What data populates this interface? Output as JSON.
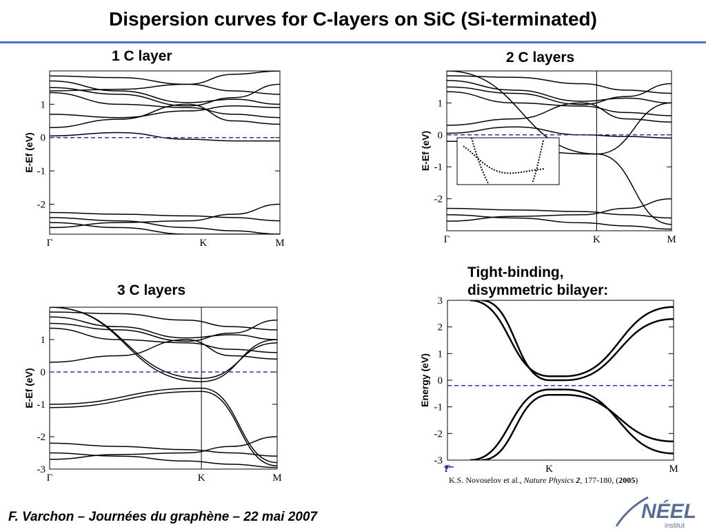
{
  "title": "Dispersion curves for C-layers on SiC (Si-terminated)",
  "footer": "F. Varchon – Journées du graphène – 22 mai 2007",
  "citation": {
    "authors": "K.S. Novoselov et al., ",
    "journal": "Nature Physics ",
    "volume": "2",
    "pages": ", 177-180, (",
    "year": "2005",
    "close": ")"
  },
  "logo": {
    "text": "NÉEL",
    "sub": "institut"
  },
  "colors": {
    "fermi_line": "#2233bb",
    "title_rule": "#4f6fc8",
    "bands": "#000000"
  },
  "chart_data": [
    {
      "type": "line",
      "panel_title": "1 C layer",
      "ylabel": "E-Ef (eV)",
      "y_ticks": [
        "1",
        "0",
        "-1",
        "-2"
      ],
      "y_tick_values": [
        1,
        0,
        -1,
        -2
      ],
      "ylim": [
        -2.9,
        2.0
      ],
      "x_labels": [
        "Γ",
        "K",
        "M"
      ],
      "x_label_positions": [
        0,
        0.667,
        1
      ],
      "k_line": false,
      "fermi_level": 0,
      "series": [
        {
          "x": [
            0,
            0.3,
            0.6,
            0.8,
            1
          ],
          "y": [
            1.85,
            1.8,
            1.6,
            1.4,
            1.3
          ]
        },
        {
          "x": [
            0,
            0.3,
            0.6,
            0.8,
            1
          ],
          "y": [
            1.7,
            1.4,
            1.05,
            1.15,
            1.0
          ]
        },
        {
          "x": [
            0,
            0.3,
            0.6,
            0.8,
            1
          ],
          "y": [
            1.5,
            1.3,
            0.95,
            1.2,
            1.6
          ]
        },
        {
          "x": [
            0,
            0.3,
            0.6,
            0.8,
            1
          ],
          "y": [
            1.4,
            1.45,
            1.6,
            1.9,
            2.0
          ]
        },
        {
          "x": [
            0,
            0.3,
            0.6,
            0.8,
            1
          ],
          "y": [
            1.35,
            1.0,
            0.9,
            0.7,
            0.6
          ]
        },
        {
          "x": [
            0,
            0.3,
            0.6,
            0.8,
            1
          ],
          "y": [
            0.7,
            0.6,
            0.8,
            0.95,
            0.9
          ]
        },
        {
          "x": [
            0,
            0.3,
            0.6,
            0.8,
            1
          ],
          "y": [
            0.3,
            0.55,
            1.0,
            0.5,
            0.4
          ]
        },
        {
          "x": [
            0,
            0.3,
            0.6,
            0.8,
            1
          ],
          "y": [
            0.05,
            0.15,
            -0.05,
            -0.1,
            -0.1
          ]
        },
        {
          "x": [
            0,
            0.3,
            0.6,
            0.8,
            1
          ],
          "y": [
            -2.25,
            -2.3,
            -2.35,
            -2.4,
            -2.5
          ]
        },
        {
          "x": [
            0,
            0.3,
            0.6,
            0.8,
            1
          ],
          "y": [
            -2.4,
            -2.5,
            -2.7,
            -2.8,
            -2.9
          ]
        },
        {
          "x": [
            0,
            0.3,
            0.6,
            0.8,
            1
          ],
          "y": [
            -2.55,
            -2.7,
            -2.9,
            -2.9,
            -2.9
          ]
        },
        {
          "x": [
            0,
            0.3,
            0.6,
            0.8,
            1
          ],
          "y": [
            -2.7,
            -2.55,
            -2.5,
            -2.3,
            -2.0
          ]
        }
      ]
    },
    {
      "type": "line",
      "panel_title": "2 C layers",
      "ylabel": "E-Ef (eV)",
      "y_ticks": [
        "1",
        "0",
        "-1",
        "-2"
      ],
      "y_tick_values": [
        1,
        0,
        -1,
        -2
      ],
      "ylim": [
        -3.0,
        2.0
      ],
      "x_labels": [
        "Γ",
        "K",
        "M"
      ],
      "x_label_positions": [
        0,
        0.667,
        1
      ],
      "k_line": true,
      "fermi_level": 0,
      "inset": true,
      "series": [
        {
          "x": [
            0,
            0.3,
            0.6,
            0.8,
            1
          ],
          "y": [
            1.85,
            1.8,
            1.6,
            1.4,
            1.3
          ]
        },
        {
          "x": [
            0,
            0.3,
            0.6,
            0.8,
            1
          ],
          "y": [
            1.7,
            1.4,
            1.05,
            1.15,
            1.0
          ]
        },
        {
          "x": [
            0,
            0.3,
            0.6,
            0.8,
            1
          ],
          "y": [
            1.5,
            1.3,
            0.95,
            1.2,
            1.6
          ]
        },
        {
          "x": [
            0,
            0.3,
            0.6,
            0.8,
            1
          ],
          "y": [
            1.35,
            1.0,
            0.9,
            0.7,
            0.6
          ]
        },
        {
          "x": [
            0,
            0.3,
            0.6,
            0.8,
            1
          ],
          "y": [
            0.3,
            0.5,
            1.0,
            0.5,
            0.4
          ]
        },
        {
          "x": [
            0,
            0.3,
            0.6,
            0.8,
            1
          ],
          "y": [
            0.05,
            0.25,
            0.0,
            -0.05,
            -0.1
          ]
        },
        {
          "x": [
            0,
            0.667,
            1
          ],
          "y": [
            2.0,
            -0.6,
            1.0
          ]
        },
        {
          "x": [
            0,
            0.667,
            1
          ],
          "y": [
            -0.2,
            -0.6,
            -2.8
          ]
        },
        {
          "x": [
            0,
            0.3,
            0.6,
            0.8,
            1
          ],
          "y": [
            -2.3,
            -2.35,
            -2.4,
            -2.5,
            -2.6
          ]
        },
        {
          "x": [
            0,
            0.3,
            0.6,
            0.8,
            1
          ],
          "y": [
            -2.5,
            -2.6,
            -2.75,
            -2.85,
            -2.95
          ]
        },
        {
          "x": [
            0,
            0.3,
            0.6,
            0.8,
            1
          ],
          "y": [
            -2.7,
            -2.55,
            -2.5,
            -2.3,
            -2.0
          ]
        }
      ]
    },
    {
      "type": "line",
      "panel_title": "3 C layers",
      "ylabel": "E-Ef (eV)",
      "y_ticks": [
        "1",
        "0",
        "-1",
        "-2",
        "-3"
      ],
      "y_tick_values": [
        1,
        0,
        -1,
        -2,
        -3
      ],
      "ylim": [
        -3.0,
        2.0
      ],
      "x_labels": [
        "Γ",
        "K",
        "M"
      ],
      "x_label_positions": [
        0,
        0.667,
        1
      ],
      "k_line": true,
      "fermi_level": 0,
      "series": [
        {
          "x": [
            0,
            0.3,
            0.6,
            0.8,
            1
          ],
          "y": [
            1.85,
            1.8,
            1.6,
            1.4,
            1.3
          ]
        },
        {
          "x": [
            0,
            0.3,
            0.6,
            0.8,
            1
          ],
          "y": [
            1.7,
            1.4,
            1.05,
            1.15,
            1.0
          ]
        },
        {
          "x": [
            0,
            0.3,
            0.6,
            0.8,
            1
          ],
          "y": [
            1.5,
            1.3,
            0.95,
            1.2,
            1.6
          ]
        },
        {
          "x": [
            0,
            0.3,
            0.6,
            0.8,
            1
          ],
          "y": [
            1.35,
            1.0,
            0.9,
            0.7,
            0.6
          ]
        },
        {
          "x": [
            0,
            0.3,
            0.6,
            0.8,
            1
          ],
          "y": [
            0.3,
            0.5,
            1.0,
            0.5,
            0.4
          ]
        },
        {
          "x": [
            0,
            0.667,
            1
          ],
          "y": [
            2.0,
            -0.3,
            1.0
          ]
        },
        {
          "x": [
            0,
            0.667,
            1
          ],
          "y": [
            2.0,
            -0.2,
            0.9
          ]
        },
        {
          "x": [
            0,
            0.667,
            1
          ],
          "y": [
            -1.0,
            -0.5,
            -2.8
          ]
        },
        {
          "x": [
            0,
            0.667,
            1
          ],
          "y": [
            -1.1,
            -0.6,
            -2.9
          ]
        },
        {
          "x": [
            0,
            0.3,
            0.6,
            0.8,
            1
          ],
          "y": [
            -2.2,
            -2.3,
            -2.4,
            -2.5,
            -2.6
          ]
        },
        {
          "x": [
            0,
            0.3,
            0.6,
            0.8,
            1
          ],
          "y": [
            -2.5,
            -2.6,
            -2.75,
            -2.85,
            -2.95
          ]
        },
        {
          "x": [
            0,
            0.3,
            0.6,
            0.8,
            1
          ],
          "y": [
            -2.7,
            -2.55,
            -2.5,
            -2.3,
            -2.0
          ]
        }
      ]
    },
    {
      "type": "line",
      "panel_title": "Tight-binding,\ndisymmetric bilayer:",
      "ylabel": "Energy (eV)",
      "y_ticks": [
        "3",
        "2",
        "1",
        "0",
        "-1",
        "-2",
        "-3"
      ],
      "y_tick_values": [
        3,
        2,
        1,
        0,
        -1,
        -2,
        -3
      ],
      "ylim": [
        -3.0,
        3.0
      ],
      "x_labels": [
        "Γ",
        "K",
        "M"
      ],
      "x_label_positions": [
        0,
        0.45,
        1
      ],
      "k_line": false,
      "fermi_level": -0.2,
      "series": [
        {
          "x": [
            0.1,
            0.45,
            0.52,
            1
          ],
          "y": [
            3.0,
            0.15,
            0.15,
            2.75
          ]
        },
        {
          "x": [
            0.15,
            0.45,
            0.52,
            1
          ],
          "y": [
            3.0,
            0.0,
            0.0,
            2.3
          ]
        },
        {
          "x": [
            0.1,
            0.45,
            0.52,
            1
          ],
          "y": [
            -3.0,
            -0.35,
            -0.35,
            -2.75
          ]
        },
        {
          "x": [
            0.15,
            0.45,
            0.52,
            1
          ],
          "y": [
            -3.0,
            -0.55,
            -0.55,
            -2.3
          ]
        }
      ]
    }
  ]
}
